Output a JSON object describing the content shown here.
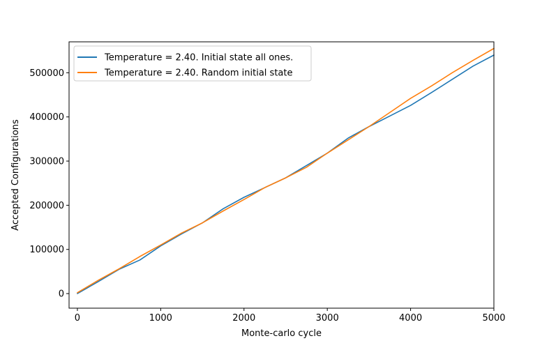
{
  "chart_data": {
    "type": "line",
    "title": "",
    "xlabel": "Monte-carlo cycle",
    "ylabel": "Accepted Configurations",
    "xlim": [
      -100,
      5000
    ],
    "ylim": [
      -33000,
      570000
    ],
    "xticks": [
      0,
      1000,
      2000,
      3000,
      4000,
      5000
    ],
    "xtick_labels": [
      "0",
      "1000",
      "2000",
      "3000",
      "4000",
      "5000"
    ],
    "yticks": [
      0,
      100000,
      200000,
      300000,
      400000,
      500000
    ],
    "ytick_labels": [
      "0",
      "100000",
      "200000",
      "300000",
      "400000",
      "500000"
    ],
    "grid": false,
    "legend_position": "top-left",
    "series": [
      {
        "name": "Temperature = 2.40. Initial state all ones.",
        "color": "#1f77b4",
        "x": [
          0,
          250,
          500,
          750,
          1000,
          1250,
          1500,
          1750,
          2000,
          2250,
          2500,
          2750,
          3000,
          3250,
          3500,
          3750,
          4000,
          4250,
          4500,
          4750,
          5000
        ],
        "y": [
          0,
          27000,
          55000,
          76000,
          108000,
          135000,
          160000,
          192000,
          218000,
          240000,
          262000,
          290000,
          318000,
          352000,
          378000,
          402000,
          426000,
          455000,
          485000,
          515000,
          540000
        ]
      },
      {
        "name": "Temperature = 2.40. Random initial state",
        "color": "#ff7f0e",
        "x": [
          0,
          250,
          500,
          750,
          1000,
          1250,
          1500,
          1750,
          2000,
          2250,
          2500,
          2750,
          3000,
          3250,
          3500,
          3750,
          4000,
          4250,
          4500,
          4750,
          5000
        ],
        "y": [
          2000,
          30000,
          56000,
          84000,
          110000,
          137000,
          160000,
          187000,
          213000,
          240000,
          262000,
          286000,
          318000,
          348000,
          378000,
          410000,
          442000,
          470000,
          500000,
          528000,
          555000
        ]
      }
    ]
  }
}
